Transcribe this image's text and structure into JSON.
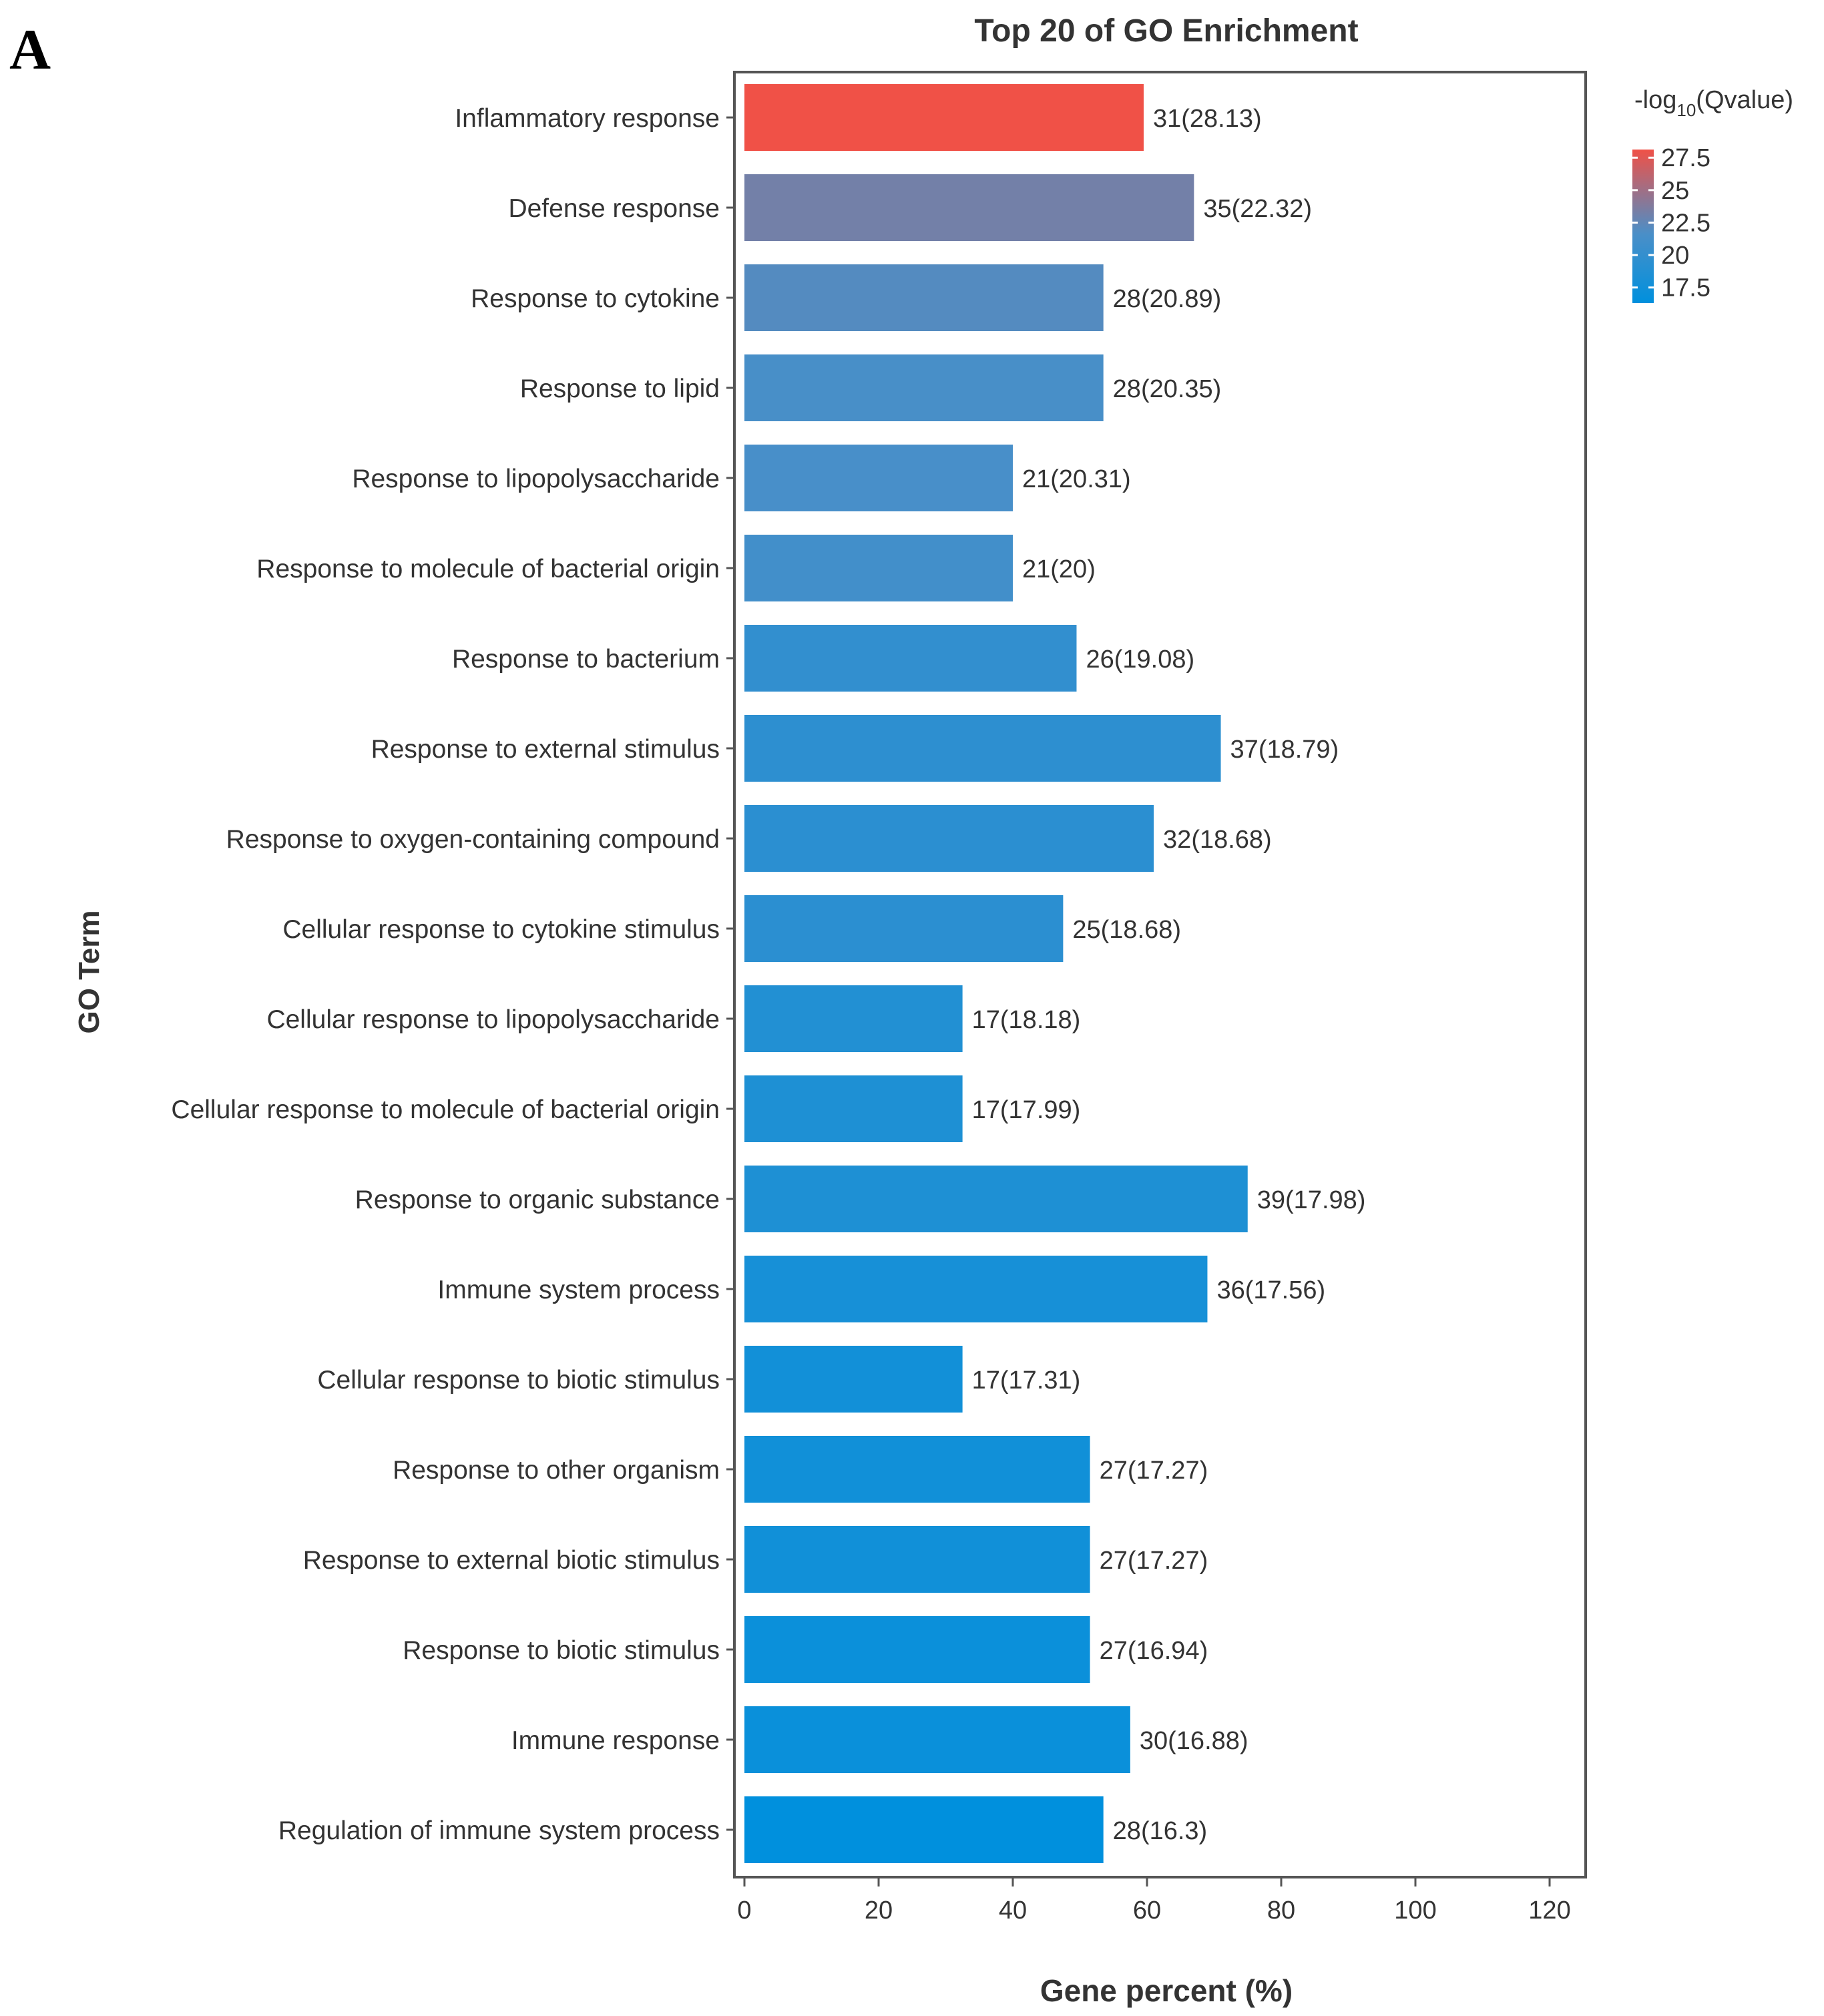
{
  "panel_label": "A",
  "chart_data": {
    "type": "bar",
    "orientation": "horizontal",
    "title": "Top 20 of GO Enrichment",
    "xlabel": "Gene percent (%)",
    "ylabel": "GO Term",
    "xlim": [
      0,
      125
    ],
    "xticks": [
      0,
      20,
      40,
      60,
      80,
      100,
      120
    ],
    "grid": false,
    "categories": [
      "Inflammatory response",
      "Defense response",
      "Response to cytokine",
      "Response to lipid",
      "Response to lipopolysaccharide",
      "Response to molecule of bacterial origin",
      "Response to bacterium",
      "Response to external stimulus",
      "Response to oxygen-containing compound",
      "Cellular response to cytokine stimulus",
      "Cellular response to lipopolysaccharide",
      "Cellular response to molecule of bacterial origin",
      "Response to organic substance",
      "Immune system process",
      "Cellular response to biotic stimulus",
      "Response to other organism",
      "Response to external biotic stimulus",
      "Response to biotic stimulus",
      "Immune response",
      "Regulation of immune system process"
    ],
    "gene_percent": [
      59.5,
      67,
      53.5,
      53.5,
      40,
      40,
      49.5,
      71,
      61,
      47.5,
      32.5,
      32.5,
      75,
      69,
      32.5,
      51.5,
      51.5,
      51.5,
      57.5,
      53.5
    ],
    "gene_count": [
      31,
      35,
      28,
      28,
      21,
      21,
      26,
      37,
      32,
      25,
      17,
      17,
      39,
      36,
      17,
      27,
      27,
      27,
      30,
      28
    ],
    "neg_log10_qvalue": [
      28.13,
      22.32,
      20.89,
      20.35,
      20.31,
      20,
      19.08,
      18.79,
      18.68,
      18.68,
      18.18,
      17.99,
      17.98,
      17.56,
      17.31,
      17.27,
      17.27,
      16.94,
      16.88,
      16.3
    ],
    "data_labels": [
      "31(28.13)",
      "35(22.32)",
      "28(20.89)",
      "28(20.35)",
      "21(20.31)",
      "21(20)",
      "26(19.08)",
      "37(18.79)",
      "32(18.68)",
      "25(18.68)",
      "17(18.18)",
      "17(17.99)",
      "39(17.98)",
      "36(17.56)",
      "17(17.31)",
      "27(17.27)",
      "27(17.27)",
      "27(16.94)",
      "30(16.88)",
      "28(16.3)"
    ],
    "legend": {
      "title_prefix": "-log",
      "title_sub": "10",
      "title_suffix": "(Qvalue)",
      "placement": "top-right",
      "ticks": [
        "27.5",
        "25",
        "22.5",
        "20",
        "17.5"
      ],
      "tick_values": [
        27.5,
        25,
        22.5,
        20,
        17.5
      ],
      "range": [
        16.3,
        28.13
      ],
      "color_low": "#0090dd",
      "color_mid": "#4a8fc8",
      "color_high": "#f05147"
    }
  }
}
